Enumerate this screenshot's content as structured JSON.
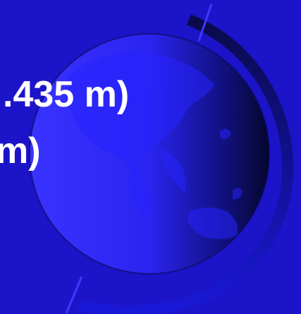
{
  "slide": {
    "text_lines": [
      ".435 m)",
      "m)"
    ]
  },
  "globe": {
    "icon": "globe-icon",
    "colors": {
      "background": "#1c14c8",
      "globe_light": "#3a33ff",
      "globe_dark": "#05062e",
      "land": "#1d1ae4",
      "ring": "#1010a8"
    }
  }
}
